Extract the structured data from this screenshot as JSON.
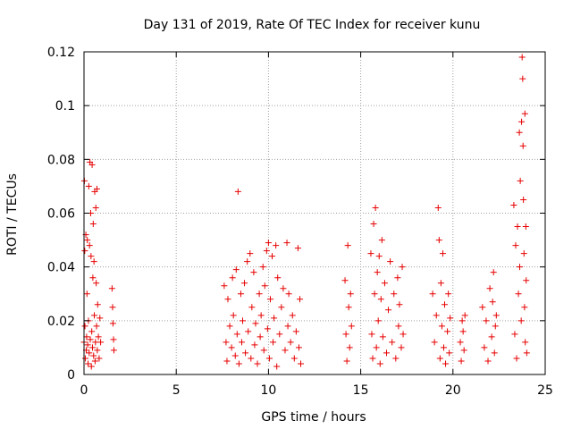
{
  "chart_data": {
    "type": "scatter",
    "title": "Day 131 of 2019, Rate Of TEC Index for receiver kunu",
    "xlabel": "GPS time / hours",
    "ylabel": "ROTI / TECUs",
    "xlim": [
      0,
      25
    ],
    "ylim": [
      0,
      0.12
    ],
    "xticks": [
      0,
      5,
      10,
      15,
      20,
      25
    ],
    "xtick_labels": [
      "0",
      "5",
      "10",
      "15",
      "20",
      "25"
    ],
    "yticks": [
      0,
      0.02,
      0.04,
      0.06,
      0.08,
      0.1,
      0.12
    ],
    "ytick_labels": [
      "0",
      "0.02",
      "0.04",
      "0.06",
      "0.08",
      "0.1",
      "0.12"
    ],
    "grid": true,
    "marker": "plus",
    "color": "#e60000",
    "series": [
      {
        "points": [
          [
            0.0,
            0.012
          ],
          [
            0.02,
            0.072
          ],
          [
            0.04,
            0.046
          ],
          [
            0.05,
            0.018
          ],
          [
            0.07,
            0.006
          ],
          [
            0.1,
            0.052
          ],
          [
            0.12,
            0.009
          ],
          [
            0.14,
            0.014
          ],
          [
            0.16,
            0.03
          ],
          [
            0.18,
            0.05
          ],
          [
            0.2,
            0.011
          ],
          [
            0.22,
            0.004
          ],
          [
            0.24,
            0.02
          ],
          [
            0.26,
            0.07
          ],
          [
            0.28,
            0.008
          ],
          [
            0.3,
            0.048
          ],
          [
            0.32,
            0.079
          ],
          [
            0.34,
            0.013
          ],
          [
            0.36,
            0.06
          ],
          [
            0.38,
            0.044
          ],
          [
            0.4,
            0.003
          ],
          [
            0.42,
            0.016
          ],
          [
            0.44,
            0.078
          ],
          [
            0.46,
            0.01
          ],
          [
            0.48,
            0.036
          ],
          [
            0.5,
            0.056
          ],
          [
            0.52,
            0.007
          ],
          [
            0.54,
            0.042
          ],
          [
            0.56,
            0.022
          ],
          [
            0.58,
            0.068
          ],
          [
            0.6,
            0.005
          ],
          [
            0.62,
            0.012
          ],
          [
            0.64,
            0.062
          ],
          [
            0.66,
            0.034
          ],
          [
            0.68,
            0.018
          ],
          [
            0.7,
            0.069
          ],
          [
            0.72,
            0.009
          ],
          [
            0.74,
            0.026
          ],
          [
            0.78,
            0.014
          ],
          [
            0.82,
            0.006
          ],
          [
            0.86,
            0.021
          ],
          [
            0.9,
            0.012
          ],
          [
            1.52,
            0.032
          ],
          [
            1.55,
            0.025
          ],
          [
            1.57,
            0.019
          ],
          [
            1.6,
            0.013
          ],
          [
            1.62,
            0.009
          ],
          [
            7.6,
            0.033
          ],
          [
            7.7,
            0.012
          ],
          [
            7.75,
            0.005
          ],
          [
            7.8,
            0.028
          ],
          [
            7.9,
            0.018
          ],
          [
            8.0,
            0.01
          ],
          [
            8.05,
            0.036
          ],
          [
            8.1,
            0.022
          ],
          [
            8.2,
            0.007
          ],
          [
            8.25,
            0.039
          ],
          [
            8.3,
            0.015
          ],
          [
            8.35,
            0.068
          ],
          [
            8.4,
            0.004
          ],
          [
            8.5,
            0.03
          ],
          [
            8.55,
            0.012
          ],
          [
            8.6,
            0.02
          ],
          [
            8.7,
            0.034
          ],
          [
            8.75,
            0.008
          ],
          [
            8.85,
            0.042
          ],
          [
            8.9,
            0.016
          ],
          [
            9.0,
            0.045
          ],
          [
            9.05,
            0.006
          ],
          [
            9.1,
            0.025
          ],
          [
            9.2,
            0.038
          ],
          [
            9.25,
            0.011
          ],
          [
            9.3,
            0.019
          ],
          [
            9.4,
            0.004
          ],
          [
            9.5,
            0.03
          ],
          [
            9.55,
            0.014
          ],
          [
            9.6,
            0.022
          ],
          [
            9.7,
            0.04
          ],
          [
            9.75,
            0.009
          ],
          [
            9.8,
            0.033
          ],
          [
            9.9,
            0.046
          ],
          [
            9.95,
            0.017
          ],
          [
            10.0,
            0.049
          ],
          [
            10.05,
            0.006
          ],
          [
            10.1,
            0.028
          ],
          [
            10.2,
            0.044
          ],
          [
            10.25,
            0.012
          ],
          [
            10.3,
            0.021
          ],
          [
            10.4,
            0.048
          ],
          [
            10.45,
            0.003
          ],
          [
            10.5,
            0.036
          ],
          [
            10.6,
            0.015
          ],
          [
            10.7,
            0.025
          ],
          [
            10.8,
            0.032
          ],
          [
            10.9,
            0.009
          ],
          [
            11.0,
            0.049
          ],
          [
            11.05,
            0.018
          ],
          [
            11.1,
            0.03
          ],
          [
            11.2,
            0.012
          ],
          [
            11.3,
            0.022
          ],
          [
            11.4,
            0.006
          ],
          [
            11.5,
            0.016
          ],
          [
            11.6,
            0.047
          ],
          [
            11.65,
            0.01
          ],
          [
            11.7,
            0.028
          ],
          [
            11.75,
            0.004
          ],
          [
            14.15,
            0.035
          ],
          [
            14.2,
            0.015
          ],
          [
            14.25,
            0.005
          ],
          [
            14.3,
            0.048
          ],
          [
            14.35,
            0.025
          ],
          [
            14.4,
            0.01
          ],
          [
            14.45,
            0.03
          ],
          [
            14.5,
            0.018
          ],
          [
            15.55,
            0.045
          ],
          [
            15.6,
            0.015
          ],
          [
            15.65,
            0.006
          ],
          [
            15.7,
            0.056
          ],
          [
            15.75,
            0.03
          ],
          [
            15.8,
            0.062
          ],
          [
            15.85,
            0.01
          ],
          [
            15.9,
            0.038
          ],
          [
            15.95,
            0.02
          ],
          [
            16.0,
            0.044
          ],
          [
            16.05,
            0.004
          ],
          [
            16.1,
            0.028
          ],
          [
            16.15,
            0.05
          ],
          [
            16.2,
            0.014
          ],
          [
            16.3,
            0.034
          ],
          [
            16.4,
            0.008
          ],
          [
            16.5,
            0.024
          ],
          [
            16.6,
            0.042
          ],
          [
            16.7,
            0.012
          ],
          [
            16.8,
            0.03
          ],
          [
            16.9,
            0.006
          ],
          [
            17.0,
            0.036
          ],
          [
            17.05,
            0.018
          ],
          [
            17.1,
            0.026
          ],
          [
            17.2,
            0.01
          ],
          [
            17.25,
            0.04
          ],
          [
            17.3,
            0.015
          ],
          [
            18.9,
            0.03
          ],
          [
            19.0,
            0.012
          ],
          [
            19.1,
            0.022
          ],
          [
            19.2,
            0.062
          ],
          [
            19.25,
            0.05
          ],
          [
            19.3,
            0.006
          ],
          [
            19.35,
            0.034
          ],
          [
            19.4,
            0.018
          ],
          [
            19.45,
            0.045
          ],
          [
            19.5,
            0.01
          ],
          [
            19.55,
            0.026
          ],
          [
            19.6,
            0.004
          ],
          [
            19.7,
            0.016
          ],
          [
            19.75,
            0.03
          ],
          [
            19.8,
            0.008
          ],
          [
            19.85,
            0.021
          ],
          [
            20.4,
            0.012
          ],
          [
            20.45,
            0.005
          ],
          [
            20.5,
            0.02
          ],
          [
            20.55,
            0.016
          ],
          [
            20.6,
            0.009
          ],
          [
            20.65,
            0.022
          ],
          [
            21.6,
            0.025
          ],
          [
            21.7,
            0.01
          ],
          [
            21.8,
            0.02
          ],
          [
            21.9,
            0.005
          ],
          [
            22.0,
            0.032
          ],
          [
            22.1,
            0.014
          ],
          [
            22.15,
            0.027
          ],
          [
            22.2,
            0.038
          ],
          [
            22.25,
            0.008
          ],
          [
            22.3,
            0.018
          ],
          [
            22.35,
            0.022
          ],
          [
            23.3,
            0.063
          ],
          [
            23.35,
            0.015
          ],
          [
            23.4,
            0.048
          ],
          [
            23.45,
            0.006
          ],
          [
            23.5,
            0.055
          ],
          [
            23.55,
            0.03
          ],
          [
            23.6,
            0.09
          ],
          [
            23.62,
            0.04
          ],
          [
            23.65,
            0.072
          ],
          [
            23.7,
            0.02
          ],
          [
            23.72,
            0.094
          ],
          [
            23.75,
            0.118
          ],
          [
            23.78,
            0.11
          ],
          [
            23.8,
            0.085
          ],
          [
            23.82,
            0.065
          ],
          [
            23.85,
            0.045
          ],
          [
            23.88,
            0.025
          ],
          [
            23.9,
            0.097
          ],
          [
            23.92,
            0.012
          ],
          [
            23.95,
            0.055
          ],
          [
            23.97,
            0.035
          ],
          [
            24.0,
            0.008
          ]
        ]
      }
    ]
  }
}
